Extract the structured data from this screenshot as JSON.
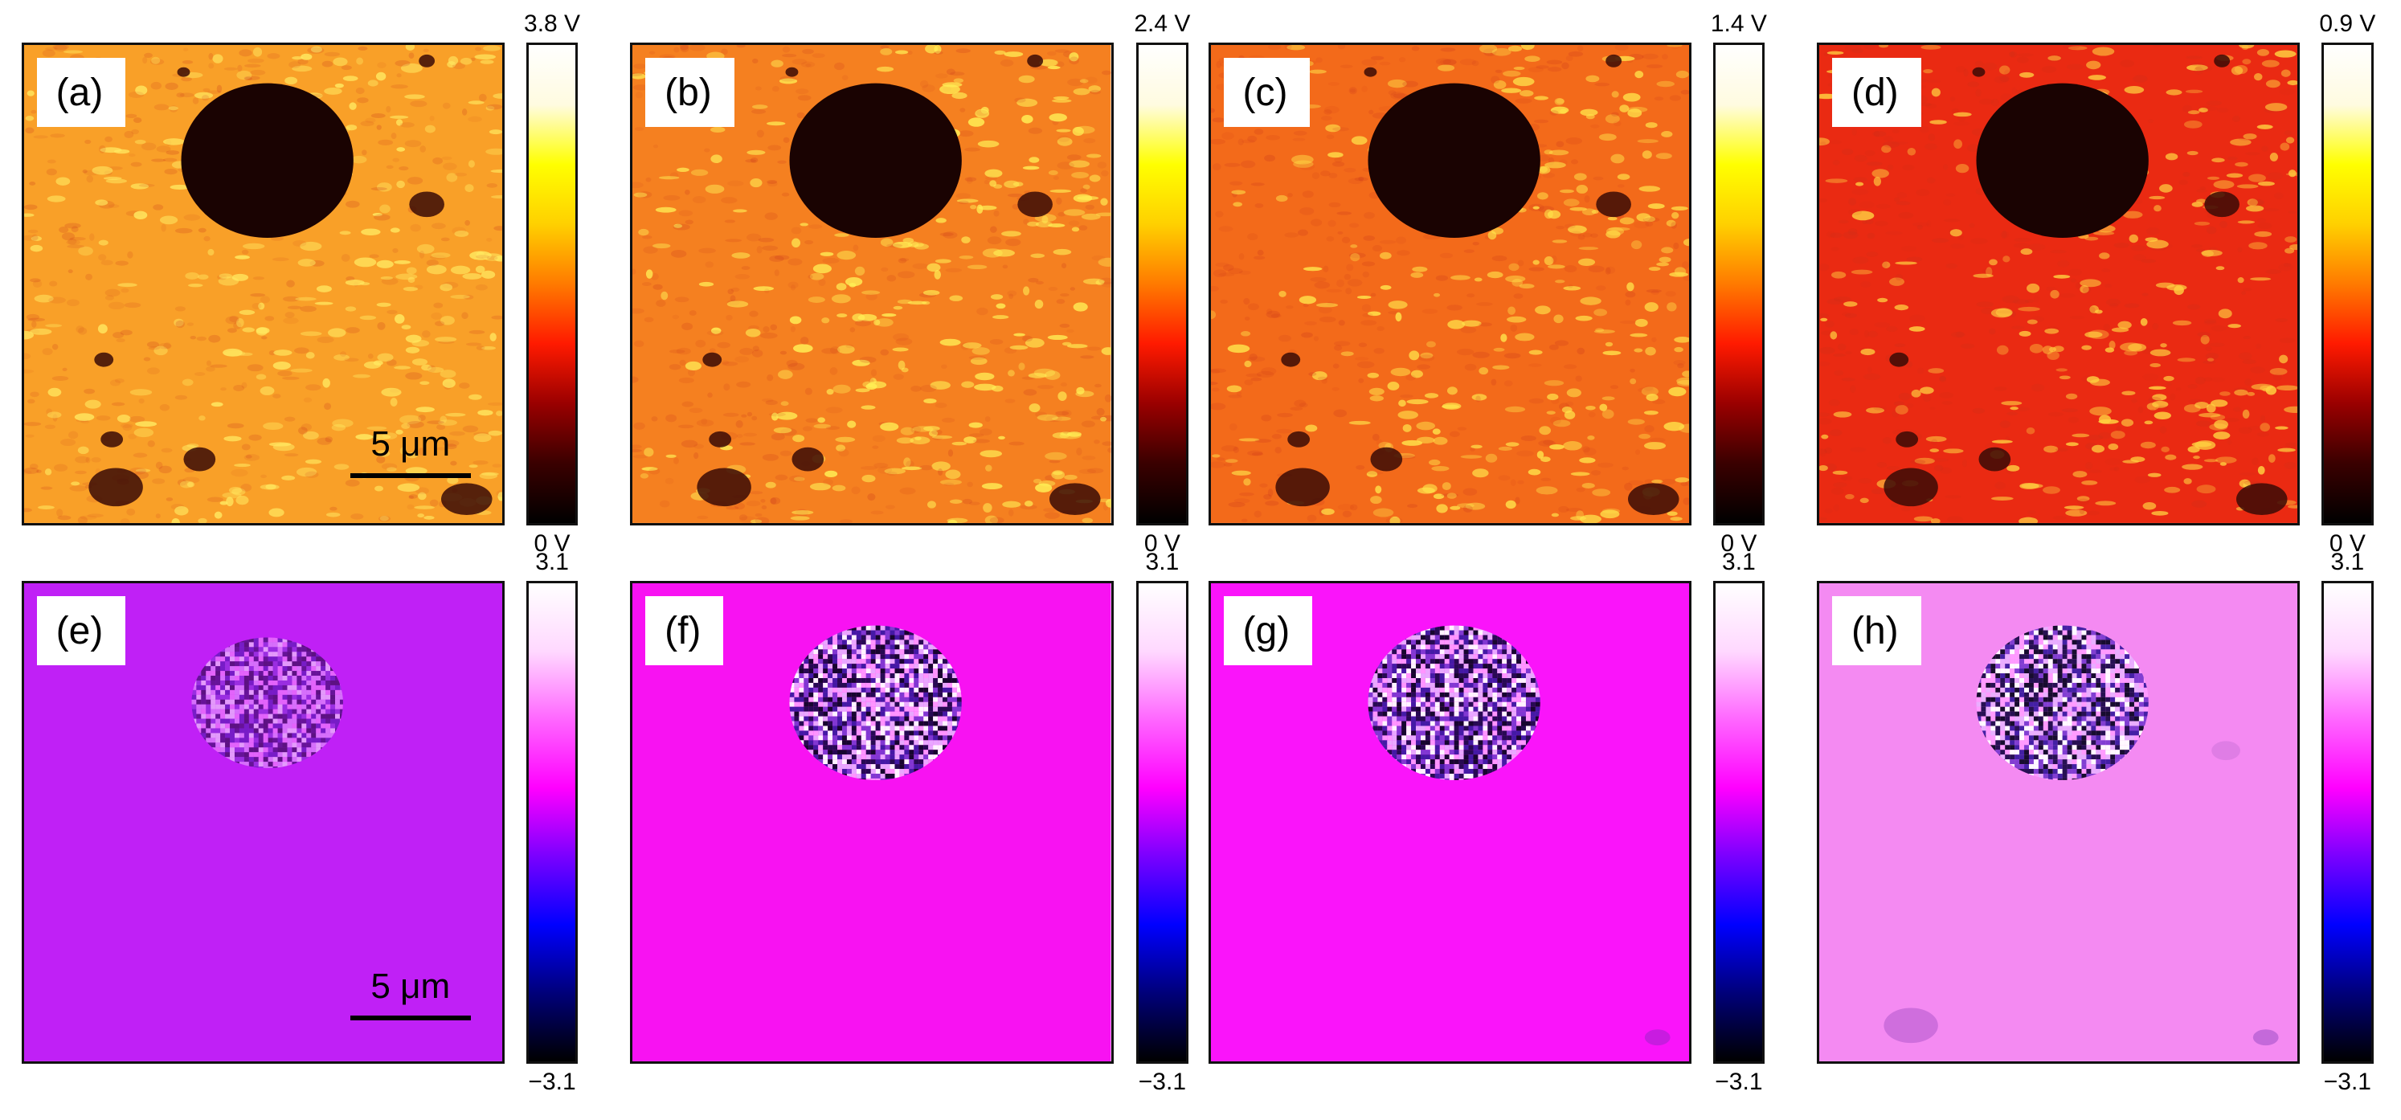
{
  "figure": {
    "panels": [
      {
        "label": "(a)",
        "type": "amplitude",
        "cbar_max": "3.8 V",
        "cbar_min": "0 V",
        "scalebar": "5 μm"
      },
      {
        "label": "(b)",
        "type": "amplitude",
        "cbar_max": "2.4 V",
        "cbar_min": "0 V",
        "scalebar": ""
      },
      {
        "label": "(c)",
        "type": "amplitude",
        "cbar_max": "1.4 V",
        "cbar_min": "0 V",
        "scalebar": ""
      },
      {
        "label": "(d)",
        "type": "amplitude",
        "cbar_max": "0.9 V",
        "cbar_min": "0 V",
        "scalebar": ""
      },
      {
        "label": "(e)",
        "type": "phase",
        "cbar_max": "3.1",
        "cbar_min": "−3.1",
        "scalebar": "5 μm"
      },
      {
        "label": "(f)",
        "type": "phase",
        "cbar_max": "3.1",
        "cbar_min": "−3.1",
        "scalebar": ""
      },
      {
        "label": "(g)",
        "type": "phase",
        "cbar_max": "3.1",
        "cbar_min": "−3.1",
        "scalebar": ""
      },
      {
        "label": "(h)",
        "type": "phase",
        "cbar_max": "3.1",
        "cbar_min": "−3.1",
        "scalebar": ""
      }
    ],
    "colormaps": {
      "amplitude": [
        "#000000",
        "#3a0000",
        "#9a0000",
        "#ff1a00",
        "#ff7a00",
        "#ffd000",
        "#ffff00",
        "#fffbe0",
        "#ffffff"
      ],
      "phase": [
        "#000000",
        "#00007a",
        "#0000ff",
        "#7a00ff",
        "#ff00ff",
        "#ff66ff",
        "#ffd8ff",
        "#ffffff"
      ]
    },
    "panel_colors": {
      "amplitude_backgrounds": [
        "#f9a028",
        "#f58020",
        "#f36a1a",
        "#ea2a12"
      ],
      "amplitude_highlights": [
        "#ffe860",
        "#ffee55",
        "#ffe24a",
        "#ffd040"
      ],
      "phase_backgrounds": [
        "#c020f6",
        "#f812f2",
        "#fa14fa",
        "#f48af2"
      ]
    }
  }
}
